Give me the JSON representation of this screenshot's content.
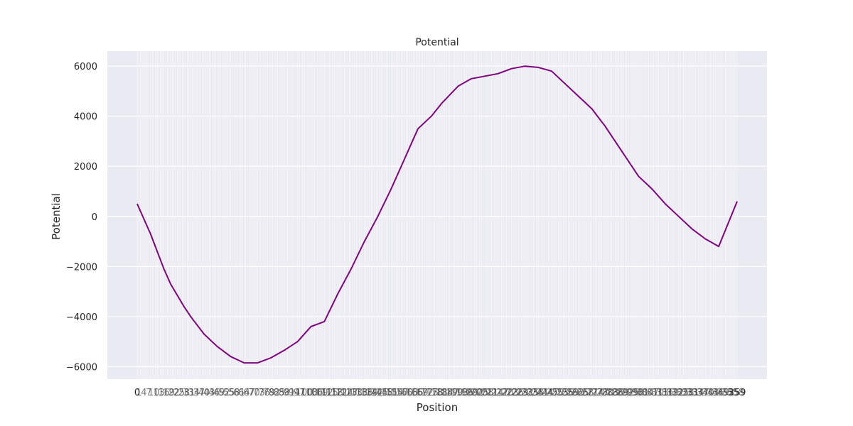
{
  "chart_data": {
    "type": "line",
    "title": "Potential",
    "xlabel": "Position",
    "ylabel": "Potential",
    "xlim": [
      0,
      359
    ],
    "ylim": [
      -6500,
      6600
    ],
    "yticks": [
      -6000,
      -4000,
      -2000,
      0,
      2000,
      4000,
      6000
    ],
    "ytick_labels": [
      "−6000",
      "−4000",
      "−2000",
      "0",
      "2000",
      "4000",
      "6000"
    ],
    "x_tick_labels_first": "0",
    "x_tick_labels_last": "359",
    "x_tick_count": 360,
    "grid": true,
    "style": "seaborn darkgrid",
    "colors": {
      "line": "#800080",
      "plot_background": "#eaeaf2",
      "grid": "#ffffff"
    },
    "series": [
      {
        "x": [
          0,
          8,
          16,
          20,
          28,
          32,
          40,
          48,
          56,
          64,
          72,
          80,
          88,
          96,
          104,
          112,
          120,
          128,
          136,
          144,
          152,
          160,
          168,
          176,
          182,
          192,
          200,
          208,
          216,
          224,
          232,
          240,
          248,
          256,
          264,
          272,
          280,
          290,
          296,
          300,
          308,
          316,
          324,
          332,
          340,
          348,
          359
        ],
        "y": [
          500,
          -700,
          -2100,
          -2700,
          -3600,
          -4000,
          -4700,
          -5200,
          -5600,
          -5850,
          -5850,
          -5650,
          -5350,
          -5000,
          -4400,
          -4200,
          -3100,
          -2100,
          -1000,
          0,
          1100,
          2300,
          3500,
          4000,
          4500,
          5200,
          5500,
          5600,
          5700,
          5900,
          6000,
          5950,
          5800,
          5300,
          4800,
          4300,
          3600,
          2600,
          2000,
          1600,
          1100,
          500,
          0,
          -500,
          -900,
          -1200,
          600
        ]
      }
    ]
  }
}
